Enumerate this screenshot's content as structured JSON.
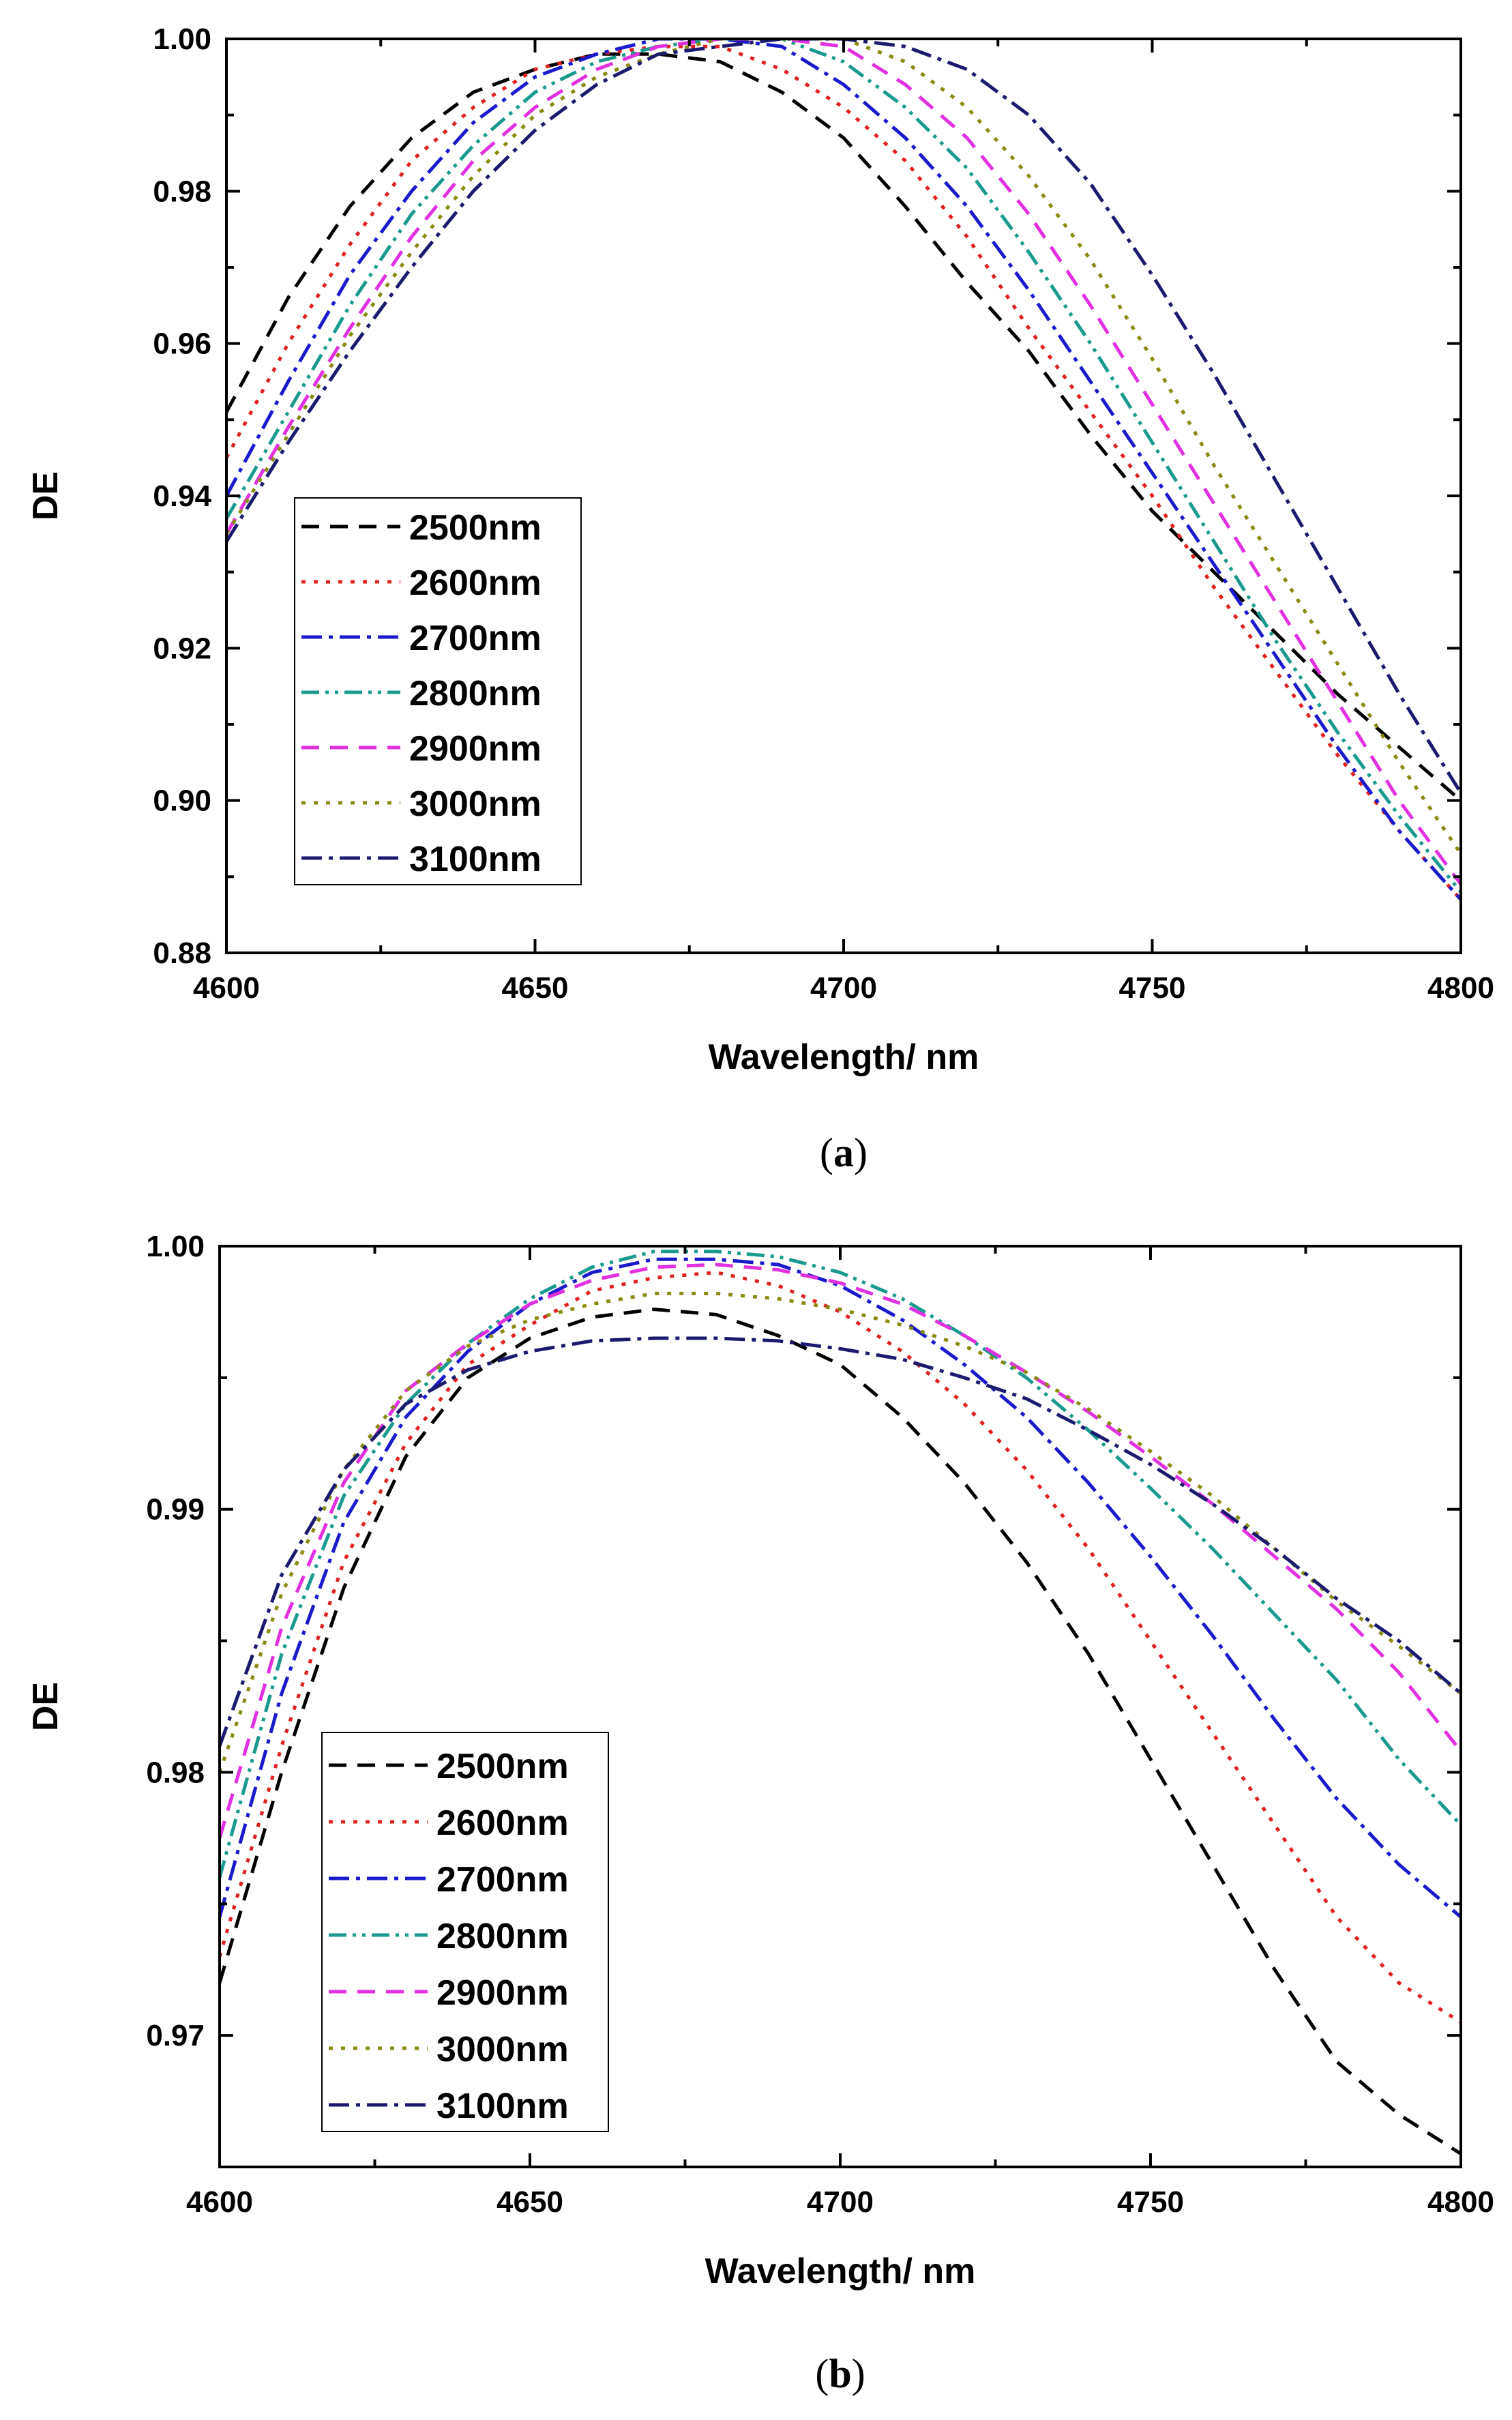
{
  "chart_data": [
    {
      "type": "line",
      "panel": "a",
      "caption_open": "(",
      "caption_letter": "a",
      "caption_close": ")",
      "xlabel": "Wavelength/ nm",
      "ylabel": "DE",
      "xlim": [
        4600,
        4800
      ],
      "ylim": [
        0.88,
        1.0
      ],
      "xticks": [
        4600,
        4650,
        4700,
        4750,
        4800
      ],
      "xtick_labels": [
        "4600",
        "4650",
        "4700",
        "4750",
        "4800"
      ],
      "yticks": [
        0.88,
        0.9,
        0.92,
        0.94,
        0.96,
        0.98,
        1.0
      ],
      "ytick_labels": [
        "0.88",
        "0.90",
        "0.92",
        "0.94",
        "0.96",
        "0.98",
        "1.00"
      ],
      "legend_position": "lower-left",
      "x": [
        4600,
        4610,
        4620,
        4630,
        4640,
        4650,
        4660,
        4670,
        4680,
        4690,
        4700,
        4710,
        4720,
        4730,
        4740,
        4750,
        4760,
        4770,
        4780,
        4790,
        4800
      ],
      "series": [
        {
          "name": "2500nm",
          "color": "#000000",
          "dash": "dashed",
          "values": [
            0.951,
            0.966,
            0.978,
            0.987,
            0.993,
            0.996,
            0.998,
            0.998,
            0.997,
            0.993,
            0.987,
            0.978,
            0.968,
            0.959,
            0.948,
            0.938,
            0.93,
            0.922,
            0.914,
            0.907,
            0.9
          ]
        },
        {
          "name": "2600nm",
          "color": "#e02020",
          "dash": "dotted",
          "values": [
            0.945,
            0.96,
            0.973,
            0.984,
            0.991,
            0.996,
            0.998,
            0.999,
            0.999,
            0.996,
            0.991,
            0.984,
            0.974,
            0.962,
            0.951,
            0.94,
            0.928,
            0.917,
            0.906,
            0.896,
            0.887
          ]
        },
        {
          "name": "2700nm",
          "color": "#1a1acc",
          "dash": "dash-dot",
          "values": [
            0.94,
            0.955,
            0.969,
            0.98,
            0.989,
            0.995,
            0.998,
            1.0,
            1.0,
            0.999,
            0.994,
            0.987,
            0.978,
            0.967,
            0.955,
            0.943,
            0.931,
            0.919,
            0.907,
            0.896,
            0.887
          ]
        },
        {
          "name": "2800nm",
          "color": "#1a9a8e",
          "dash": "dash-dot-dot",
          "values": [
            0.937,
            0.951,
            0.965,
            0.977,
            0.986,
            0.993,
            0.997,
            0.999,
            1.0,
            1.0,
            0.997,
            0.991,
            0.983,
            0.972,
            0.96,
            0.947,
            0.934,
            0.921,
            0.909,
            0.898,
            0.888
          ]
        },
        {
          "name": "2900nm",
          "color": "#e030e0",
          "dash": "dashed",
          "values": [
            0.935,
            0.949,
            0.962,
            0.974,
            0.984,
            0.991,
            0.996,
            0.999,
            1.0,
            1.0,
            0.999,
            0.994,
            0.987,
            0.977,
            0.965,
            0.952,
            0.939,
            0.926,
            0.913,
            0.9,
            0.889
          ]
        },
        {
          "name": "3000nm",
          "color": "#8a8a10",
          "dash": "dotted",
          "values": [
            0.935,
            0.948,
            0.961,
            0.972,
            0.982,
            0.99,
            0.995,
            0.998,
            1.0,
            1.0,
            1.0,
            0.997,
            0.991,
            0.982,
            0.971,
            0.958,
            0.944,
            0.931,
            0.918,
            0.905,
            0.893
          ]
        },
        {
          "name": "3100nm",
          "color": "#1a1a6e",
          "dash": "dash-dot",
          "values": [
            0.934,
            0.947,
            0.959,
            0.97,
            0.98,
            0.988,
            0.994,
            0.998,
            0.999,
            1.0,
            1.0,
            0.999,
            0.996,
            0.99,
            0.981,
            0.969,
            0.956,
            0.942,
            0.928,
            0.914,
            0.901
          ]
        }
      ]
    },
    {
      "type": "line",
      "panel": "b",
      "caption_open": "(",
      "caption_letter": "b",
      "caption_close": ")",
      "xlabel": "Wavelength/ nm",
      "ylabel": "DE",
      "xlim": [
        4600,
        4800
      ],
      "ylim": [
        0.965,
        1.0
      ],
      "xticks": [
        4600,
        4650,
        4700,
        4750,
        4800
      ],
      "xtick_labels": [
        "4600",
        "4650",
        "4700",
        "4750",
        "4800"
      ],
      "yticks": [
        0.97,
        0.98,
        0.99,
        1.0
      ],
      "ytick_labels": [
        "0.97",
        "0.98",
        "0.99",
        "1.00"
      ],
      "legend_position": "lower-left",
      "x": [
        4600,
        4610,
        4620,
        4630,
        4640,
        4650,
        4660,
        4670,
        4680,
        4690,
        4700,
        4710,
        4720,
        4730,
        4740,
        4750,
        4760,
        4770,
        4780,
        4790,
        4800
      ],
      "series": [
        {
          "name": "2500nm",
          "color": "#000000",
          "dash": "dashed",
          "values": [
            0.972,
            0.98,
            0.987,
            0.992,
            0.995,
            0.9965,
            0.9973,
            0.9976,
            0.9974,
            0.9966,
            0.9955,
            0.9935,
            0.991,
            0.988,
            0.9845,
            0.9805,
            0.9765,
            0.9725,
            0.969,
            0.967,
            0.9655
          ]
        },
        {
          "name": "2600nm",
          "color": "#e02020",
          "dash": "dotted",
          "values": [
            0.973,
            0.981,
            0.988,
            0.9925,
            0.9955,
            0.997,
            0.9983,
            0.9988,
            0.999,
            0.9985,
            0.9975,
            0.996,
            0.994,
            0.9915,
            0.9885,
            0.985,
            0.9815,
            0.978,
            0.9745,
            0.972,
            0.9705
          ]
        },
        {
          "name": "2700nm",
          "color": "#1a1acc",
          "dash": "dash-dot",
          "values": [
            0.9745,
            0.983,
            0.9895,
            0.9935,
            0.996,
            0.9978,
            0.999,
            0.9995,
            0.9995,
            0.9993,
            0.9985,
            0.9972,
            0.9955,
            0.9935,
            0.991,
            0.9882,
            0.9852,
            0.982,
            0.979,
            0.9765,
            0.9745
          ]
        },
        {
          "name": "2800nm",
          "color": "#1a9a8e",
          "dash": "dash-dot-dot",
          "values": [
            0.976,
            0.9845,
            0.9905,
            0.994,
            0.9963,
            0.998,
            0.9992,
            0.9998,
            0.9998,
            0.9996,
            0.999,
            0.998,
            0.9966,
            0.995,
            0.993,
            0.9908,
            0.9885,
            0.986,
            0.9835,
            0.9805,
            0.978
          ]
        },
        {
          "name": "2900nm",
          "color": "#e030e0",
          "dash": "dashed",
          "values": [
            0.9775,
            0.9855,
            0.991,
            0.9945,
            0.9963,
            0.9978,
            0.9987,
            0.9992,
            0.9993,
            0.9991,
            0.9986,
            0.9978,
            0.9966,
            0.9952,
            0.9937,
            0.992,
            0.9902,
            0.9882,
            0.9862,
            0.9838,
            0.9808
          ]
        },
        {
          "name": "3000nm",
          "color": "#8a8a10",
          "dash": "dotted",
          "values": [
            0.98,
            0.9868,
            0.9915,
            0.9945,
            0.9962,
            0.9972,
            0.9978,
            0.9982,
            0.9982,
            0.998,
            0.9976,
            0.997,
            0.9962,
            0.9952,
            0.9938,
            0.9922,
            0.9905,
            0.9885,
            0.9865,
            0.9848,
            0.983
          ]
        },
        {
          "name": "3100nm",
          "color": "#1a1a6e",
          "dash": "dash-dot",
          "values": [
            0.981,
            0.9875,
            0.9915,
            0.994,
            0.9953,
            0.996,
            0.9964,
            0.9965,
            0.9965,
            0.9964,
            0.9961,
            0.9957,
            0.995,
            0.9942,
            0.993,
            0.9917,
            0.9902,
            0.9885,
            0.9866,
            0.985,
            0.983
          ]
        }
      ]
    }
  ]
}
